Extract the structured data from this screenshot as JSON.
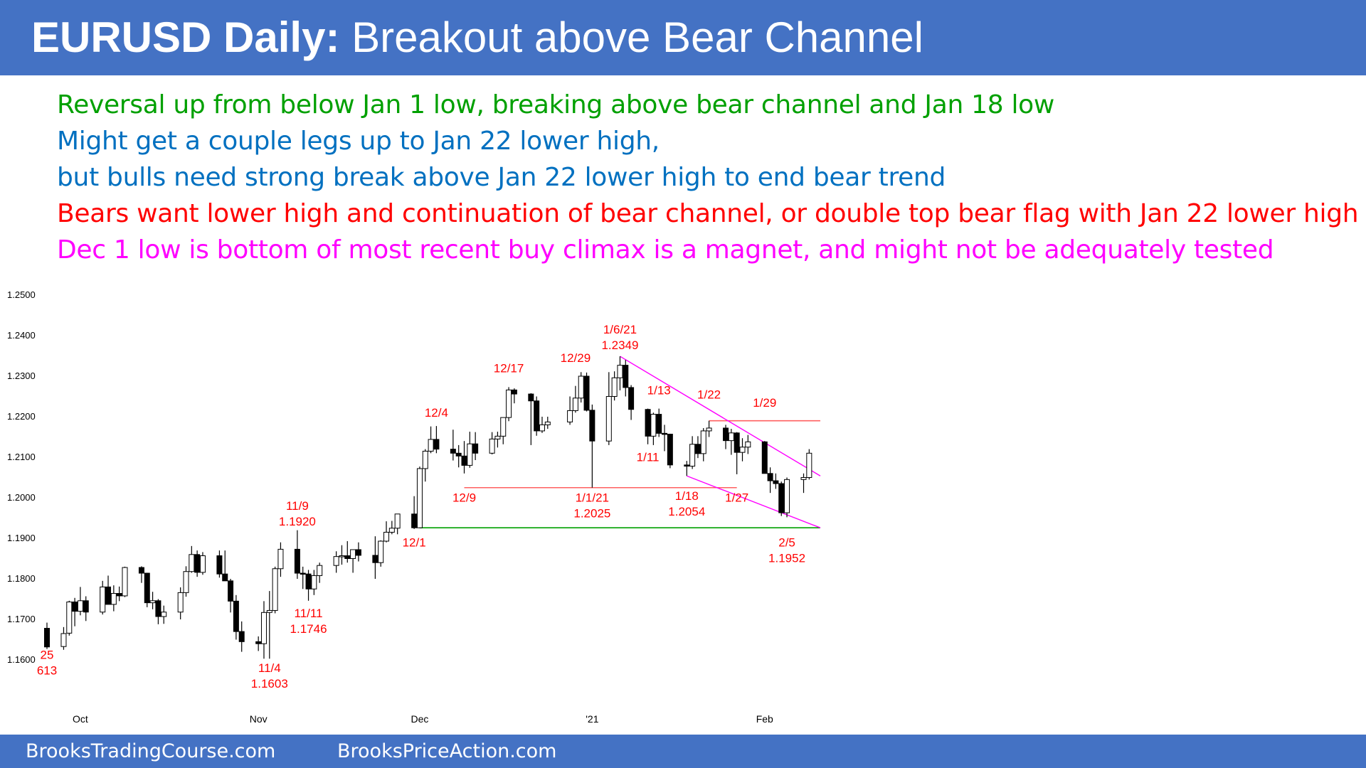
{
  "header": {
    "title_bold": "EURUSD Daily:",
    "title_rest": "Breakout above Bear Channel"
  },
  "notes": [
    {
      "text": "Reversal up from below Jan 1 low, breaking above bear channel and Jan 18 low",
      "color": "#00A000"
    },
    {
      "text": "Might get a couple legs up to Jan 22 lower high,",
      "color": "#0070C0"
    },
    {
      "text": "but bulls need strong break above Jan 22 lower high to end bear trend",
      "color": "#0070C0"
    },
    {
      "text": "Bears want lower high and continuation of bear channel, or double top bear flag with Jan 22 lower high",
      "color": "#FF0000"
    },
    {
      "text": "Dec 1 low is bottom of most recent buy climax is a magnet, and might not be adequately tested",
      "color": "#FF00FF"
    }
  ],
  "footer": {
    "left": "BrooksTradingCourse.com",
    "right": "BrooksPriceAction.com"
  },
  "colors": {
    "header_bg": "#4472C4",
    "annotation": "#FF0000",
    "channel_line": "#FF00FF",
    "support_green": "#00A000",
    "level_red": "#FF6060",
    "bull_candle": "#ffffff",
    "bear_candle": "#000000"
  },
  "chart_data": {
    "type": "candlestick",
    "symbol": "EURUSD",
    "timeframe": "Daily",
    "ylim": [
      1.155,
      1.255
    ],
    "y_ticks": [
      "1.2500",
      "1.2400",
      "1.2300",
      "1.2200",
      "1.2100",
      "1.2000",
      "1.1900",
      "1.1800",
      "1.1700",
      "1.1600"
    ],
    "x_labels": [
      "Oct",
      "Nov",
      "Dec",
      "'21",
      "Feb"
    ],
    "x_label_dates": [
      "2020-10-01",
      "2020-11-02",
      "2020-12-01",
      "2021-01-01",
      "2021-02-01"
    ],
    "date_range": [
      "2020-09-25",
      "2021-02-08"
    ],
    "candles": [
      {
        "d": "2020-09-25",
        "o": 1.1678,
        "h": 1.1692,
        "l": 1.1627,
        "c": 1.1632
      },
      {
        "d": "2020-09-28",
        "o": 1.1633,
        "h": 1.1681,
        "l": 1.1625,
        "c": 1.1665
      },
      {
        "d": "2020-09-29",
        "o": 1.1666,
        "h": 1.1746,
        "l": 1.166,
        "c": 1.1743
      },
      {
        "d": "2020-09-30",
        "o": 1.1743,
        "h": 1.1753,
        "l": 1.1683,
        "c": 1.172
      },
      {
        "d": "2020-10-01",
        "o": 1.172,
        "h": 1.178,
        "l": 1.171,
        "c": 1.1746
      },
      {
        "d": "2020-10-02",
        "o": 1.1746,
        "h": 1.1757,
        "l": 1.1696,
        "c": 1.1718
      },
      {
        "d": "2020-10-05",
        "o": 1.1718,
        "h": 1.1795,
        "l": 1.1712,
        "c": 1.178
      },
      {
        "d": "2020-10-06",
        "o": 1.178,
        "h": 1.1808,
        "l": 1.174,
        "c": 1.1737
      },
      {
        "d": "2020-10-07",
        "o": 1.1737,
        "h": 1.1784,
        "l": 1.172,
        "c": 1.1764
      },
      {
        "d": "2020-10-08",
        "o": 1.1764,
        "h": 1.1781,
        "l": 1.1745,
        "c": 1.1758
      },
      {
        "d": "2020-10-09",
        "o": 1.1758,
        "h": 1.183,
        "l": 1.1755,
        "c": 1.1828
      },
      {
        "d": "2020-10-12",
        "o": 1.1828,
        "h": 1.1831,
        "l": 1.179,
        "c": 1.1814
      },
      {
        "d": "2020-10-13",
        "o": 1.1814,
        "h": 1.1815,
        "l": 1.173,
        "c": 1.1741
      },
      {
        "d": "2020-10-14",
        "o": 1.1741,
        "h": 1.1768,
        "l": 1.1725,
        "c": 1.1746
      },
      {
        "d": "2020-10-15",
        "o": 1.1746,
        "h": 1.175,
        "l": 1.1688,
        "c": 1.1707
      },
      {
        "d": "2020-10-16",
        "o": 1.1707,
        "h": 1.1734,
        "l": 1.1689,
        "c": 1.1718
      },
      {
        "d": "2020-10-19",
        "o": 1.1718,
        "h": 1.1779,
        "l": 1.17,
        "c": 1.1766
      },
      {
        "d": "2020-10-20",
        "o": 1.1766,
        "h": 1.1831,
        "l": 1.1756,
        "c": 1.1818
      },
      {
        "d": "2020-10-21",
        "o": 1.1818,
        "h": 1.1881,
        "l": 1.1815,
        "c": 1.186
      },
      {
        "d": "2020-10-22",
        "o": 1.186,
        "h": 1.187,
        "l": 1.1805,
        "c": 1.1816
      },
      {
        "d": "2020-10-23",
        "o": 1.1816,
        "h": 1.1866,
        "l": 1.181,
        "c": 1.1857
      },
      {
        "d": "2020-10-26",
        "o": 1.1857,
        "h": 1.187,
        "l": 1.1803,
        "c": 1.1812
      },
      {
        "d": "2020-10-27",
        "o": 1.1812,
        "h": 1.187,
        "l": 1.1795,
        "c": 1.1795
      },
      {
        "d": "2020-10-28",
        "o": 1.1795,
        "h": 1.18,
        "l": 1.1717,
        "c": 1.1745
      },
      {
        "d": "2020-10-29",
        "o": 1.1745,
        "h": 1.176,
        "l": 1.165,
        "c": 1.167
      },
      {
        "d": "2020-10-30",
        "o": 1.167,
        "h": 1.1695,
        "l": 1.162,
        "c": 1.1645
      },
      {
        "d": "2020-11-02",
        "o": 1.1645,
        "h": 1.1658,
        "l": 1.1622,
        "c": 1.164
      },
      {
        "d": "2020-11-03",
        "o": 1.164,
        "h": 1.1745,
        "l": 1.1603,
        "c": 1.1717
      },
      {
        "d": "2020-11-04",
        "o": 1.1717,
        "h": 1.177,
        "l": 1.1603,
        "c": 1.1722
      },
      {
        "d": "2020-11-05",
        "o": 1.1722,
        "h": 1.183,
        "l": 1.1715,
        "c": 1.1825
      },
      {
        "d": "2020-11-06",
        "o": 1.1825,
        "h": 1.189,
        "l": 1.1805,
        "c": 1.1873
      },
      {
        "d": "2020-11-09",
        "o": 1.1873,
        "h": 1.192,
        "l": 1.18,
        "c": 1.1814
      },
      {
        "d": "2020-11-10",
        "o": 1.1814,
        "h": 1.183,
        "l": 1.1775,
        "c": 1.1812
      },
      {
        "d": "2020-11-11",
        "o": 1.1812,
        "h": 1.1822,
        "l": 1.1746,
        "c": 1.1775
      },
      {
        "d": "2020-11-12",
        "o": 1.1775,
        "h": 1.1822,
        "l": 1.176,
        "c": 1.1808
      },
      {
        "d": "2020-11-13",
        "o": 1.1808,
        "h": 1.184,
        "l": 1.179,
        "c": 1.1833
      },
      {
        "d": "2020-11-16",
        "o": 1.1833,
        "h": 1.1868,
        "l": 1.1815,
        "c": 1.1855
      },
      {
        "d": "2020-11-17",
        "o": 1.1855,
        "h": 1.1883,
        "l": 1.1835,
        "c": 1.1857
      },
      {
        "d": "2020-11-18",
        "o": 1.1857,
        "h": 1.1893,
        "l": 1.184,
        "c": 1.185
      },
      {
        "d": "2020-11-19",
        "o": 1.185,
        "h": 1.187,
        "l": 1.1815,
        "c": 1.1872
      },
      {
        "d": "2020-11-20",
        "o": 1.1872,
        "h": 1.189,
        "l": 1.1843,
        "c": 1.1858
      },
      {
        "d": "2020-11-23",
        "o": 1.1858,
        "h": 1.1905,
        "l": 1.18,
        "c": 1.184
      },
      {
        "d": "2020-11-24",
        "o": 1.184,
        "h": 1.1895,
        "l": 1.183,
        "c": 1.1893
      },
      {
        "d": "2020-11-25",
        "o": 1.1893,
        "h": 1.1942,
        "l": 1.189,
        "c": 1.1915
      },
      {
        "d": "2020-11-26",
        "o": 1.1915,
        "h": 1.1943,
        "l": 1.191,
        "c": 1.1925
      },
      {
        "d": "2020-11-27",
        "o": 1.1925,
        "h": 1.196,
        "l": 1.191,
        "c": 1.196
      },
      {
        "d": "2020-11-30",
        "o": 1.196,
        "h": 1.2004,
        "l": 1.1923,
        "c": 1.1926
      },
      {
        "d": "2020-12-01",
        "o": 1.1926,
        "h": 1.2077,
        "l": 1.1925,
        "c": 1.2072
      },
      {
        "d": "2020-12-02",
        "o": 1.2072,
        "h": 1.212,
        "l": 1.204,
        "c": 1.2115
      },
      {
        "d": "2020-12-03",
        "o": 1.2115,
        "h": 1.2176,
        "l": 1.211,
        "c": 1.2144
      },
      {
        "d": "2020-12-04",
        "o": 1.2144,
        "h": 1.2177,
        "l": 1.211,
        "c": 1.212
      },
      {
        "d": "2020-12-07",
        "o": 1.212,
        "h": 1.2168,
        "l": 1.2092,
        "c": 1.211
      },
      {
        "d": "2020-12-08",
        "o": 1.211,
        "h": 1.213,
        "l": 1.2075,
        "c": 1.2103
      },
      {
        "d": "2020-12-09",
        "o": 1.2103,
        "h": 1.214,
        "l": 1.206,
        "c": 1.208
      },
      {
        "d": "2020-12-10",
        "o": 1.208,
        "h": 1.2163,
        "l": 1.2074,
        "c": 1.2133
      },
      {
        "d": "2020-12-11",
        "o": 1.2133,
        "h": 1.2162,
        "l": 1.2093,
        "c": 1.211
      },
      {
        "d": "2020-12-14",
        "o": 1.211,
        "h": 1.2162,
        "l": 1.2107,
        "c": 1.2145
      },
      {
        "d": "2020-12-15",
        "o": 1.2145,
        "h": 1.2163,
        "l": 1.2124,
        "c": 1.2152
      },
      {
        "d": "2020-12-16",
        "o": 1.2152,
        "h": 1.2197,
        "l": 1.2132,
        "c": 1.2198
      },
      {
        "d": "2020-12-17",
        "o": 1.2198,
        "h": 1.2273,
        "l": 1.2189,
        "c": 1.2266
      },
      {
        "d": "2020-12-18",
        "o": 1.2266,
        "h": 1.227,
        "l": 1.2233,
        "c": 1.2256
      },
      {
        "d": "2020-12-21",
        "o": 1.2256,
        "h": 1.2258,
        "l": 1.213,
        "c": 1.2239
      },
      {
        "d": "2020-12-22",
        "o": 1.2239,
        "h": 1.225,
        "l": 1.2153,
        "c": 1.2165
      },
      {
        "d": "2020-12-23",
        "o": 1.2165,
        "h": 1.22,
        "l": 1.216,
        "c": 1.218
      },
      {
        "d": "2020-12-24",
        "o": 1.218,
        "h": 1.22,
        "l": 1.217,
        "c": 1.2187
      },
      {
        "d": "2020-12-28",
        "o": 1.2187,
        "h": 1.225,
        "l": 1.218,
        "c": 1.2215
      },
      {
        "d": "2020-12-29",
        "o": 1.2215,
        "h": 1.2276,
        "l": 1.221,
        "c": 1.2246
      },
      {
        "d": "2020-12-30",
        "o": 1.2246,
        "h": 1.231,
        "l": 1.2235,
        "c": 1.23
      },
      {
        "d": "2020-12-31",
        "o": 1.23,
        "h": 1.2309,
        "l": 1.2213,
        "c": 1.2216
      },
      {
        "d": "2021-01-01",
        "o": 1.2216,
        "h": 1.223,
        "l": 1.2025,
        "c": 1.214
      },
      {
        "d": "2021-01-04",
        "o": 1.214,
        "h": 1.231,
        "l": 1.213,
        "c": 1.225
      },
      {
        "d": "2021-01-05",
        "o": 1.225,
        "h": 1.2312,
        "l": 1.224,
        "c": 1.2296
      },
      {
        "d": "2021-01-06",
        "o": 1.2296,
        "h": 1.2349,
        "l": 1.2265,
        "c": 1.2327
      },
      {
        "d": "2021-01-07",
        "o": 1.2327,
        "h": 1.234,
        "l": 1.225,
        "c": 1.2272
      },
      {
        "d": "2021-01-08",
        "o": 1.2272,
        "h": 1.2278,
        "l": 1.2192,
        "c": 1.2218
      },
      {
        "d": "2021-01-11",
        "o": 1.2218,
        "h": 1.222,
        "l": 1.2132,
        "c": 1.2152
      },
      {
        "d": "2021-01-12",
        "o": 1.2152,
        "h": 1.221,
        "l": 1.213,
        "c": 1.2206
      },
      {
        "d": "2021-01-13",
        "o": 1.2206,
        "h": 1.222,
        "l": 1.215,
        "c": 1.2159
      },
      {
        "d": "2021-01-14",
        "o": 1.2159,
        "h": 1.218,
        "l": 1.2115,
        "c": 1.2157
      },
      {
        "d": "2021-01-15",
        "o": 1.2157,
        "h": 1.2158,
        "l": 1.2073,
        "c": 1.2081
      },
      {
        "d": "2021-01-18",
        "o": 1.2081,
        "h": 1.2091,
        "l": 1.2054,
        "c": 1.2078
      },
      {
        "d": "2021-01-19",
        "o": 1.2078,
        "h": 1.2152,
        "l": 1.2071,
        "c": 1.2132
      },
      {
        "d": "2021-01-20",
        "o": 1.2132,
        "h": 1.2152,
        "l": 1.2098,
        "c": 1.2109
      },
      {
        "d": "2021-01-21",
        "o": 1.2109,
        "h": 1.2172,
        "l": 1.209,
        "c": 1.2165
      },
      {
        "d": "2021-01-22",
        "o": 1.2165,
        "h": 1.219,
        "l": 1.215,
        "c": 1.2172
      },
      {
        "d": "2021-01-25",
        "o": 1.2172,
        "h": 1.218,
        "l": 1.212,
        "c": 1.2141
      },
      {
        "d": "2021-01-26",
        "o": 1.2141,
        "h": 1.217,
        "l": 1.2106,
        "c": 1.216
      },
      {
        "d": "2021-01-27",
        "o": 1.216,
        "h": 1.2162,
        "l": 1.2058,
        "c": 1.2112
      },
      {
        "d": "2021-01-28",
        "o": 1.2112,
        "h": 1.2147,
        "l": 1.209,
        "c": 1.2125
      },
      {
        "d": "2021-01-29",
        "o": 1.2125,
        "h": 1.2155,
        "l": 1.2108,
        "c": 1.2138
      },
      {
        "d": "2021-02-01",
        "o": 1.2138,
        "h": 1.214,
        "l": 1.206,
        "c": 1.206
      },
      {
        "d": "2021-02-02",
        "o": 1.206,
        "h": 1.2075,
        "l": 1.2012,
        "c": 1.2042
      },
      {
        "d": "2021-02-03",
        "o": 1.2042,
        "h": 1.206,
        "l": 1.2022,
        "c": 1.2035
      },
      {
        "d": "2021-02-04",
        "o": 1.2035,
        "h": 1.204,
        "l": 1.1955,
        "c": 1.1963
      },
      {
        "d": "2021-02-05",
        "o": 1.1963,
        "h": 1.205,
        "l": 1.1952,
        "c": 1.2045
      },
      {
        "d": "2021-02-08",
        "o": 1.2045,
        "h": 1.206,
        "l": 1.2012,
        "c": 1.205
      },
      {
        "d": "2021-02-09",
        "o": 1.205,
        "h": 1.212,
        "l": 1.2045,
        "c": 1.211
      }
    ],
    "levels": [
      {
        "name": "Dec 1 low",
        "y": 1.1926,
        "from": "2020-12-01",
        "to": "2021-02-11",
        "color": "green"
      },
      {
        "name": "Jan 1 low",
        "y": 1.2025,
        "from": "2020-12-09",
        "to": "2021-01-27",
        "color": "red"
      },
      {
        "name": "Jan 22 lower high",
        "y": 1.219,
        "from": "2021-01-22",
        "to": "2021-02-11",
        "color": "red"
      }
    ],
    "channel_lines": [
      {
        "name": "bear channel upper",
        "from": [
          "2021-01-06",
          1.2349
        ],
        "to": [
          "2021-02-11",
          1.2054
        ]
      },
      {
        "name": "bear channel lower",
        "from": [
          "2021-01-18",
          1.2054
        ],
        "to": [
          "2021-02-11",
          1.1926
        ]
      }
    ],
    "annotations": [
      {
        "lines": [
          "25",
          "613"
        ],
        "d": "2020-09-25",
        "y": 1.1603
      },
      {
        "lines": [
          "11/4",
          "1.1603"
        ],
        "d": "2020-11-04",
        "y": 1.157
      },
      {
        "lines": [
          "11/9",
          "1.1920"
        ],
        "d": "2020-11-09",
        "y": 1.197
      },
      {
        "lines": [
          "11/11",
          "1.1746"
        ],
        "d": "2020-11-11",
        "y": 1.1705
      },
      {
        "lines": [
          "12/1"
        ],
        "d": "2020-11-30",
        "y": 1.188
      },
      {
        "lines": [
          "12/4"
        ],
        "d": "2020-12-04",
        "y": 1.22
      },
      {
        "lines": [
          "12/9"
        ],
        "d": "2020-12-09",
        "y": 1.199
      },
      {
        "lines": [
          "12/17"
        ],
        "d": "2020-12-17",
        "y": 1.231
      },
      {
        "lines": [
          "12/29"
        ],
        "d": "2020-12-29",
        "y": 1.2335
      },
      {
        "lines": [
          "1/1/21",
          "1.2025"
        ],
        "d": "2021-01-01",
        "y": 1.199
      },
      {
        "lines": [
          "1/6/21",
          "1.2349"
        ],
        "d": "2021-01-06",
        "y": 1.2405
      },
      {
        "lines": [
          "1/11"
        ],
        "d": "2021-01-11",
        "y": 1.209
      },
      {
        "lines": [
          "1/13"
        ],
        "d": "2021-01-13",
        "y": 1.2255
      },
      {
        "lines": [
          "1/18",
          "1.2054"
        ],
        "d": "2021-01-18",
        "y": 1.1995
      },
      {
        "lines": [
          "1/22"
        ],
        "d": "2021-01-22",
        "y": 1.2245
      },
      {
        "lines": [
          "1/27"
        ],
        "d": "2021-01-27",
        "y": 1.199
      },
      {
        "lines": [
          "1/29"
        ],
        "d": "2021-02-01",
        "y": 1.2225
      },
      {
        "lines": [
          "2/5",
          "1.1952"
        ],
        "d": "2021-02-05",
        "y": 1.188
      }
    ]
  }
}
